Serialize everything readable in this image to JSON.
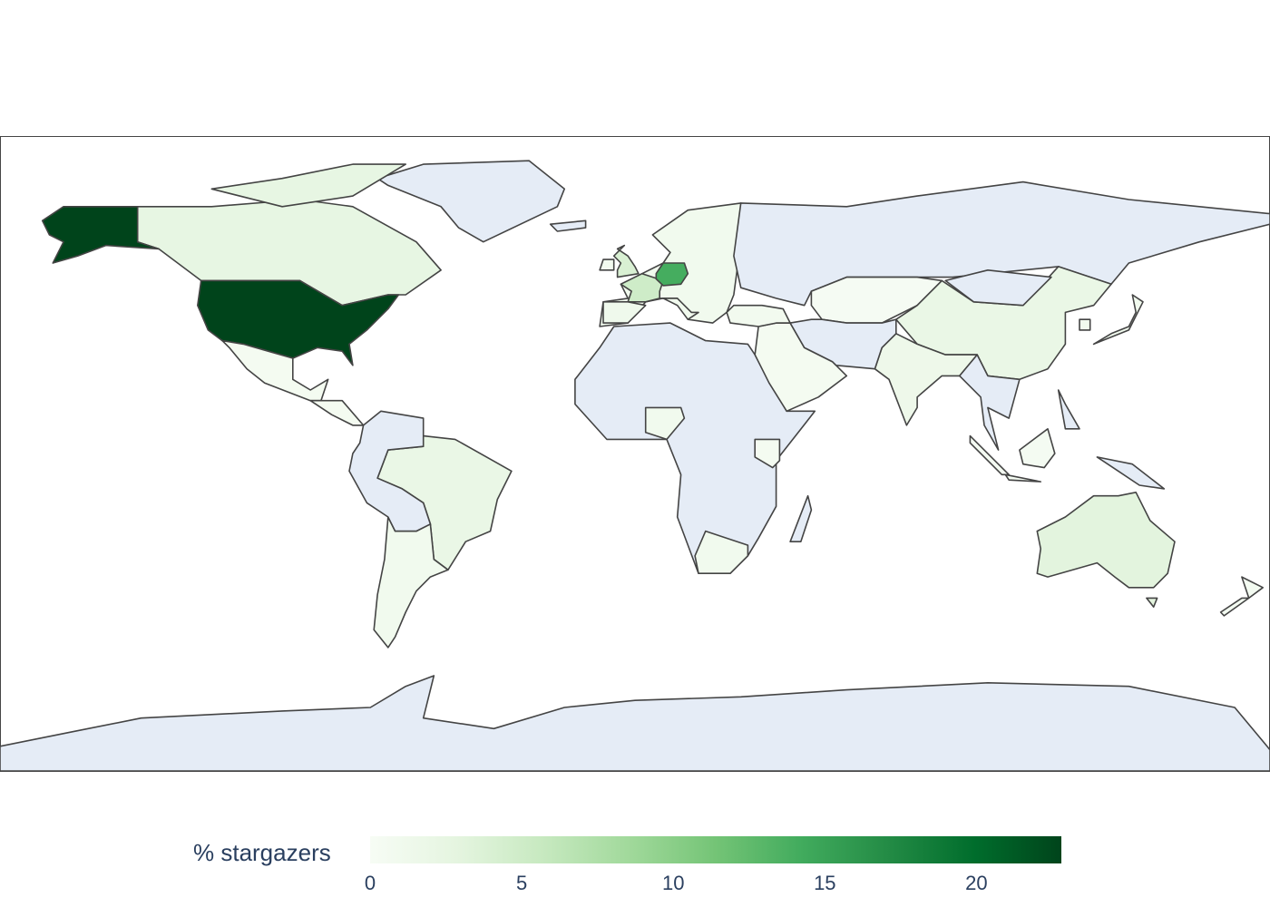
{
  "chart_data": {
    "type": "choropleth",
    "projection": "equirectangular",
    "colorscale": "Greens",
    "colorscale_stops": [
      "#f7fcf5",
      "#e5f5e0",
      "#c7e9c0",
      "#a1d99b",
      "#74c476",
      "#41ab5d",
      "#238b45",
      "#006d2c",
      "#00441b"
    ],
    "no_data_color": "#E5ECF6",
    "border_color": "#444444",
    "colorbar": {
      "title": "% stargazers",
      "range": [
        0,
        22.8
      ],
      "ticks": [
        "0",
        "5",
        "10",
        "15",
        "20"
      ],
      "orientation": "horizontal",
      "placement": "bottom"
    },
    "values": {
      "United States": 22.8,
      "Germany": 14,
      "France": 5,
      "United Kingdom": 4,
      "Australia": 3,
      "Canada": 2.5,
      "China": 2,
      "Brazil": 2,
      "India": 1.5,
      "Europe (other)": 1,
      "Japan": 1,
      "Nigeria": 1,
      "South Africa": 1,
      "Argentina/Chile": 1,
      "Spain": 1.2,
      "Italy": 1,
      "Ireland": 0.8,
      "Mexico": 0.5,
      "Kenya": 0.5,
      "Middle East": 0.5,
      "Turkey": 0.8,
      "Kazakhstan": 0.3,
      "Korea": 1,
      "Indonesia": 0.4,
      "New Zealand": 0.6,
      "Greenland": null,
      "Russia": null,
      "Africa (other)": null,
      "Antarctica": null
    }
  }
}
